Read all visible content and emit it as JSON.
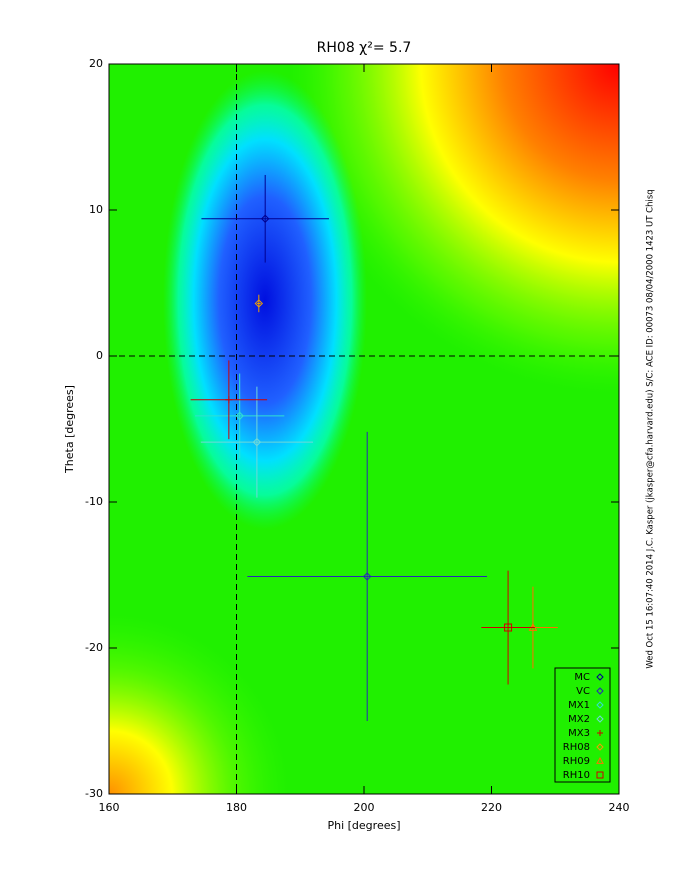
{
  "chart_data": {
    "type": "scatter",
    "title": "RH08 χ²=   5.7",
    "x_label": "Phi [degrees]",
    "y_label": "Theta [degrees]",
    "side_note": "Wed Oct 15 16:07:40 2014   J.C. Kasper (jkasper@cfa.harvard.edu)   S/C: ACE ID: 00073 08/04/2000   1423 UT Chisq",
    "xlim": [
      160,
      240
    ],
    "ylim": [
      -30,
      20
    ],
    "xticks": [
      160,
      180,
      200,
      220,
      240
    ],
    "yticks": [
      -30,
      -20,
      -10,
      0,
      10,
      20
    ],
    "reference_lines": {
      "x": 180,
      "y": 0
    },
    "series": [
      {
        "name": "MC",
        "color": "#000090",
        "marker": "diamond",
        "x": [
          184.5
        ],
        "values": [
          9.4
        ],
        "xerr": [
          10
        ],
        "yerr": [
          3
        ]
      },
      {
        "name": "VC",
        "color": "#2828b8",
        "marker": "diamond",
        "x": [
          200.5
        ],
        "values": [
          -15.1
        ],
        "xerr": [
          18.8
        ],
        "yerr": [
          9.9
        ]
      },
      {
        "name": "MX1",
        "color": "#30e0d0",
        "marker": "diamond",
        "x": [
          180.5
        ],
        "values": [
          -4.1
        ],
        "xerr": [
          7
        ],
        "yerr": [
          2.9
        ]
      },
      {
        "name": "MX2",
        "color": "#70d8d8",
        "marker": "diamond",
        "x": [
          183.2
        ],
        "values": [
          -5.9
        ],
        "xerr": [
          8.8
        ],
        "yerr": [
          3.8
        ]
      },
      {
        "name": "MX3",
        "color": "#d00000",
        "marker": "plus",
        "x": [
          178.8
        ],
        "values": [
          -3.0
        ],
        "xerr": [
          6
        ],
        "yerr": [
          2.7
        ]
      },
      {
        "name": "RH08",
        "color": "#f0a000",
        "marker": "diamond",
        "x": [
          183.5
        ],
        "values": [
          3.6
        ],
        "xerr": [
          0.3
        ],
        "yerr": [
          0.6
        ]
      },
      {
        "name": "RH09",
        "color": "#ff7000",
        "marker": "triangle",
        "x": [
          226.5
        ],
        "values": [
          -18.6
        ],
        "xerr": [
          3.9
        ],
        "yerr": [
          2.8
        ]
      },
      {
        "name": "RH10",
        "color": "#d00000",
        "marker": "square",
        "x": [
          222.6
        ],
        "values": [
          -18.6
        ],
        "xerr": [
          4.2
        ],
        "yerr": [
          3.9
        ]
      }
    ]
  }
}
